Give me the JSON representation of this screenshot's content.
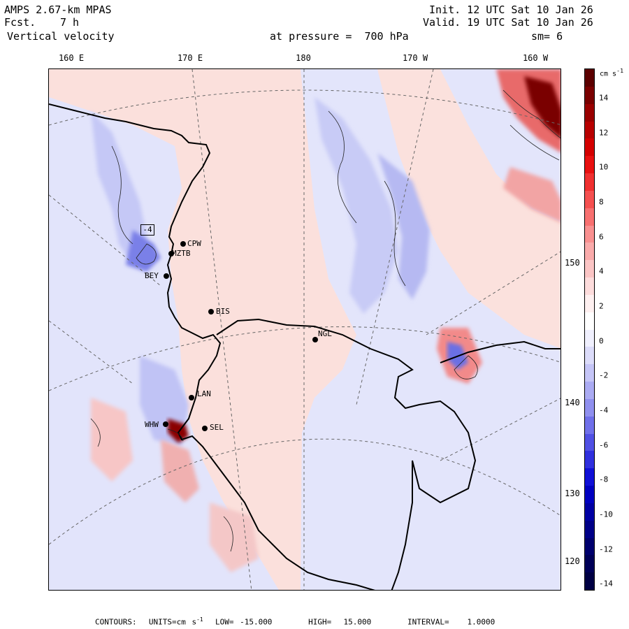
{
  "header": {
    "model": "AMPS 2.67-km MPAS",
    "fcst_label": "Fcst.",
    "fcst_value": "7 h",
    "field": "Vertical velocity",
    "init": "Init. 12 UTC Sat 10 Jan 26",
    "valid": "Valid. 19 UTC Sat 10 Jan 26",
    "level": "at pressure =  700 hPa",
    "smooth": "sm= 6"
  },
  "longitude_labels": [
    "160 E",
    "170 E",
    "180",
    "170 W",
    "160 W"
  ],
  "latitude_labels": [
    "150 W",
    "140 W",
    "130 W",
    "120 W"
  ],
  "stations": [
    {
      "id": "CPW"
    },
    {
      "id": "MZTB"
    },
    {
      "id": "BEY"
    },
    {
      "id": "BIS"
    },
    {
      "id": "NGL"
    },
    {
      "id": "LAN"
    },
    {
      "id": "WHW"
    },
    {
      "id": "SEL"
    }
  ],
  "contour_box_label": "-4",
  "colorbar": {
    "unit_label": "cm s",
    "unit_exp": "-1",
    "tick_labels": [
      "14",
      "12",
      "10",
      "8",
      "6",
      "4",
      "2",
      "0",
      "-2",
      "-4",
      "-6",
      "-8",
      "-10",
      "-12",
      "-14"
    ],
    "colors": [
      "#5c0000",
      "#7a0000",
      "#9a0000",
      "#b80000",
      "#d40000",
      "#e81010",
      "#f03030",
      "#f55050",
      "#f87070",
      "#f99090",
      "#faabab",
      "#fbc5c5",
      "#fddcdc",
      "#fef0f0",
      "#ffffff",
      "#f0f0fe",
      "#dcdcfa",
      "#c5c5f7",
      "#ababf3",
      "#9090ef",
      "#7070ea",
      "#5050e4",
      "#3030de",
      "#1010d6",
      "#0000c0",
      "#0000a4",
      "#000088",
      "#00006e",
      "#000058",
      "#000044"
    ]
  },
  "footer": {
    "text": "CONTOURS:  UNITS=cm s",
    "exp": "-1",
    "rest": "  LOW= -15.000      HIGH=  15.000      INTERVAL=   1.0000"
  },
  "colors": {
    "positive_bg": "#fbe0dc",
    "negative_bg": "#e2e4fb"
  }
}
